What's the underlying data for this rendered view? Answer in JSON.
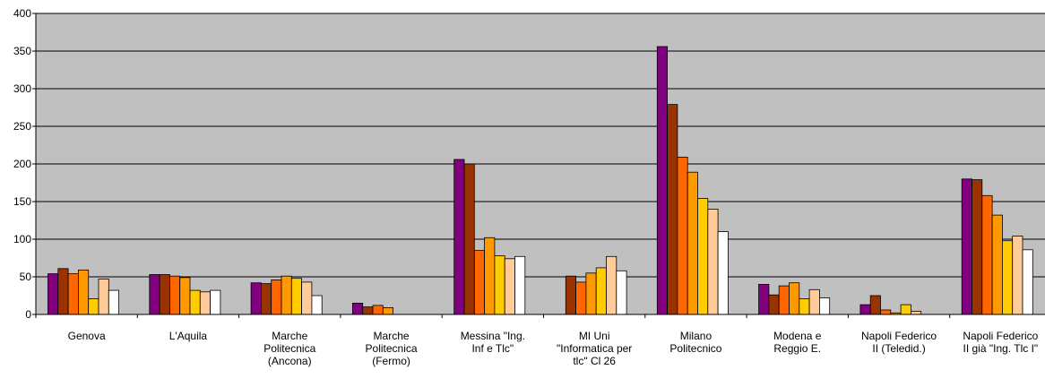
{
  "chart_data": {
    "type": "bar",
    "ylim": [
      0,
      400
    ],
    "yticks": [
      "0",
      "50",
      "100",
      "150",
      "200",
      "250",
      "300",
      "350",
      "400"
    ],
    "grid": true,
    "plot_background": "#c0c0c0",
    "categories": [
      [
        "Genova"
      ],
      [
        "L'Aquila"
      ],
      [
        "Marche",
        "Politecnica",
        "(Ancona)"
      ],
      [
        "Marche",
        "Politecnica",
        "(Fermo)"
      ],
      [
        "Messina  \"Ing.",
        "Inf e Tlc\""
      ],
      [
        "MI Uni",
        "\"Informatica per",
        "tlc\"  Cl 26"
      ],
      [
        "Milano",
        "Politecnico"
      ],
      [
        "Modena e",
        "Reggio E."
      ],
      [
        "Napoli Federico",
        "II (Teledid.)"
      ],
      [
        "Napoli Federico",
        "II  già \"Ing. Tlc I\""
      ]
    ],
    "series_colors": [
      "#800080",
      "#993300",
      "#ff6600",
      "#ff9900",
      "#ffcc00",
      "#ffcc99",
      "#ffffff"
    ],
    "series": [
      {
        "values": [
          54,
          53,
          42,
          15,
          206,
          null,
          356,
          40,
          13,
          180
        ]
      },
      {
        "values": [
          61,
          53,
          41,
          10,
          200,
          51,
          279,
          26,
          25,
          179
        ]
      },
      {
        "values": [
          54,
          51,
          46,
          12,
          85,
          43,
          209,
          38,
          6,
          158
        ]
      },
      {
        "values": [
          59,
          49,
          51,
          9,
          102,
          55,
          189,
          42,
          2,
          132
        ]
      },
      {
        "values": [
          21,
          32,
          48,
          null,
          78,
          62,
          154,
          21,
          13,
          98
        ]
      },
      {
        "values": [
          47,
          30,
          43,
          null,
          74,
          77,
          140,
          33,
          4,
          104
        ]
      },
      {
        "values": [
          32,
          32,
          25,
          null,
          77,
          58,
          110,
          22,
          null,
          86
        ]
      }
    ]
  }
}
